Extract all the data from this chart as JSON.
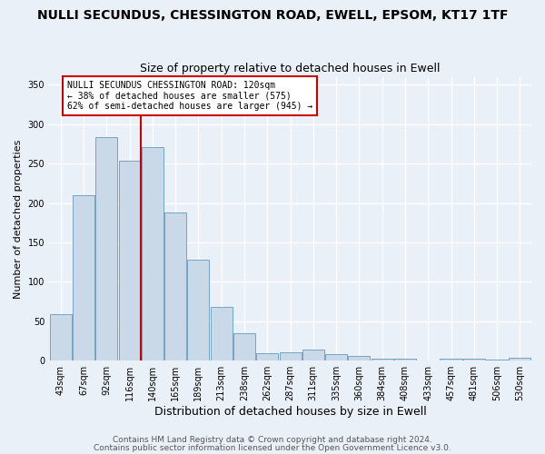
{
  "title": "NULLI SECUNDUS, CHESSINGTON ROAD, EWELL, EPSOM, KT17 1TF",
  "subtitle": "Size of property relative to detached houses in Ewell",
  "xlabel": "Distribution of detached houses by size in Ewell",
  "ylabel": "Number of detached properties",
  "footer_line1": "Contains HM Land Registry data © Crown copyright and database right 2024.",
  "footer_line2": "Contains public sector information licensed under the Open Government Licence v3.0.",
  "categories": [
    "43sqm",
    "67sqm",
    "92sqm",
    "116sqm",
    "140sqm",
    "165sqm",
    "189sqm",
    "213sqm",
    "238sqm",
    "262sqm",
    "287sqm",
    "311sqm",
    "335sqm",
    "360sqm",
    "384sqm",
    "408sqm",
    "433sqm",
    "457sqm",
    "481sqm",
    "506sqm",
    "530sqm"
  ],
  "values": [
    59,
    210,
    283,
    253,
    271,
    188,
    128,
    68,
    35,
    10,
    11,
    14,
    8,
    6,
    3,
    2,
    0,
    3,
    2,
    1,
    4
  ],
  "bar_color": "#c9d9e8",
  "bar_edge_color": "#6699bb",
  "background_color": "#eaf0f8",
  "grid_color": "#ffffff",
  "annotation_text_line1": "NULLI SECUNDUS CHESSINGTON ROAD: 120sqm",
  "annotation_text_line2": "← 38% of detached houses are smaller (575)",
  "annotation_text_line3": "62% of semi-detached houses are larger (945) →",
  "red_line_color": "#cc0000",
  "annotation_box_color": "#ffffff",
  "annotation_box_edge": "#cc0000",
  "red_line_x": 3.5,
  "ylim": [
    0,
    360
  ],
  "yticks": [
    0,
    50,
    100,
    150,
    200,
    250,
    300,
    350
  ],
  "title_fontsize": 10,
  "subtitle_fontsize": 9,
  "xlabel_fontsize": 9,
  "ylabel_fontsize": 8,
  "tick_fontsize": 7,
  "footer_fontsize": 6.5,
  "annotation_fontsize": 7
}
